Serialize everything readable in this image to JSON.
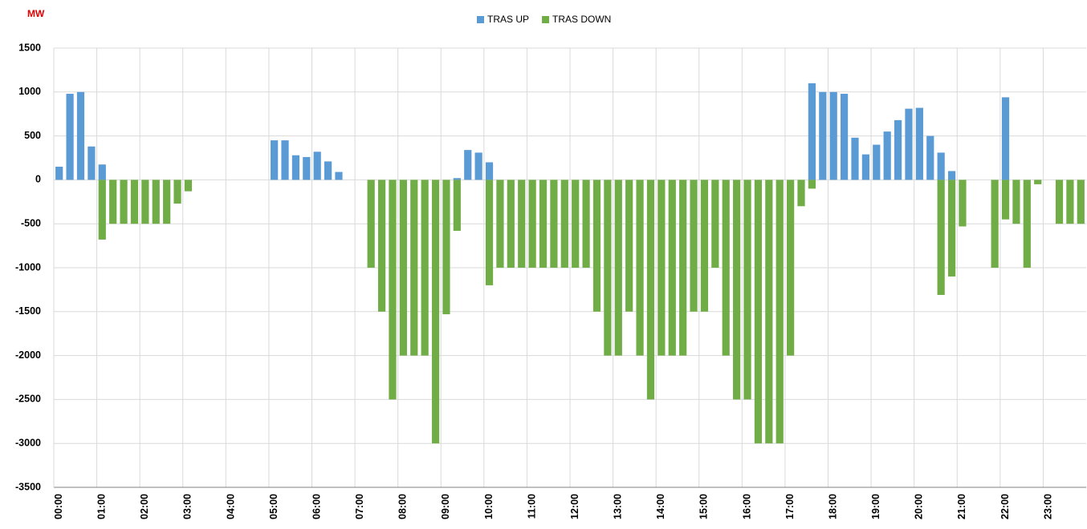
{
  "chart_data": {
    "type": "bar",
    "y_label": "MW",
    "categories": [
      "00:00",
      null,
      null,
      null,
      "01:00",
      null,
      null,
      null,
      "02:00",
      null,
      null,
      null,
      "03:00",
      null,
      null,
      null,
      "04:00",
      null,
      null,
      null,
      "05:00",
      null,
      null,
      null,
      "06:00",
      null,
      null,
      null,
      "07:00",
      null,
      null,
      null,
      "08:00",
      null,
      null,
      null,
      "09:00",
      null,
      null,
      null,
      "10:00",
      null,
      null,
      null,
      "11:00",
      null,
      null,
      null,
      "12:00",
      null,
      null,
      null,
      "13:00",
      null,
      null,
      null,
      "14:00",
      null,
      null,
      null,
      "15:00",
      null,
      null,
      null,
      "16:00",
      null,
      null,
      null,
      "17:00",
      null,
      null,
      null,
      "18:00",
      null,
      null,
      null,
      "19:00",
      null,
      null,
      null,
      "20:00",
      null,
      null,
      null,
      "21:00",
      null,
      null,
      null,
      "22:00",
      null,
      null,
      null,
      "23:00",
      null,
      null,
      null
    ],
    "series": [
      {
        "name": "TRAS UP",
        "color": "#5b9bd5",
        "values": [
          150,
          980,
          1000,
          380,
          175,
          null,
          null,
          null,
          null,
          null,
          null,
          null,
          null,
          null,
          null,
          null,
          null,
          null,
          null,
          null,
          450,
          450,
          280,
          260,
          320,
          210,
          90,
          null,
          null,
          null,
          null,
          null,
          null,
          null,
          null,
          null,
          null,
          20,
          340,
          310,
          200,
          null,
          null,
          null,
          null,
          null,
          null,
          null,
          null,
          null,
          null,
          null,
          null,
          null,
          null,
          null,
          null,
          null,
          null,
          null,
          null,
          null,
          null,
          null,
          null,
          null,
          null,
          null,
          null,
          null,
          1100,
          1000,
          1000,
          980,
          480,
          290,
          400,
          550,
          680,
          810,
          820,
          500,
          310,
          100,
          null,
          null,
          null,
          null,
          940,
          null,
          null,
          null,
          null,
          null,
          null,
          null
        ]
      },
      {
        "name": "TRAS DOWN",
        "color": "#70ad47",
        "values": [
          null,
          null,
          null,
          null,
          -680,
          -500,
          -500,
          -500,
          -500,
          -500,
          -500,
          -270,
          -130,
          null,
          null,
          null,
          null,
          null,
          null,
          null,
          null,
          null,
          null,
          null,
          null,
          null,
          null,
          null,
          null,
          -1000,
          -1500,
          -2500,
          -2000,
          -2000,
          -2000,
          -3000,
          -1530,
          -580,
          null,
          null,
          -1200,
          -1000,
          -1000,
          -1000,
          -1000,
          -1000,
          -1000,
          -1000,
          -1000,
          -1000,
          -1500,
          -2000,
          -2000,
          -1500,
          -2000,
          -2500,
          -2000,
          -2000,
          -2000,
          -1500,
          -1500,
          -1000,
          -2000,
          -2500,
          -2500,
          -3000,
          -3000,
          -3000,
          -2000,
          -300,
          -100,
          null,
          null,
          null,
          null,
          null,
          null,
          null,
          null,
          null,
          null,
          null,
          -1310,
          -1100,
          -530,
          null,
          null,
          -1000,
          -450,
          -500,
          -1000,
          -50,
          null,
          -500,
          -500,
          -500
        ]
      }
    ],
    "ylim": [
      -3500,
      1500
    ],
    "yticks": [
      -3500,
      -3000,
      -2500,
      -2000,
      -1500,
      -1000,
      -500,
      0,
      500,
      1000,
      1500
    ],
    "grid": true,
    "legend": "top"
  }
}
